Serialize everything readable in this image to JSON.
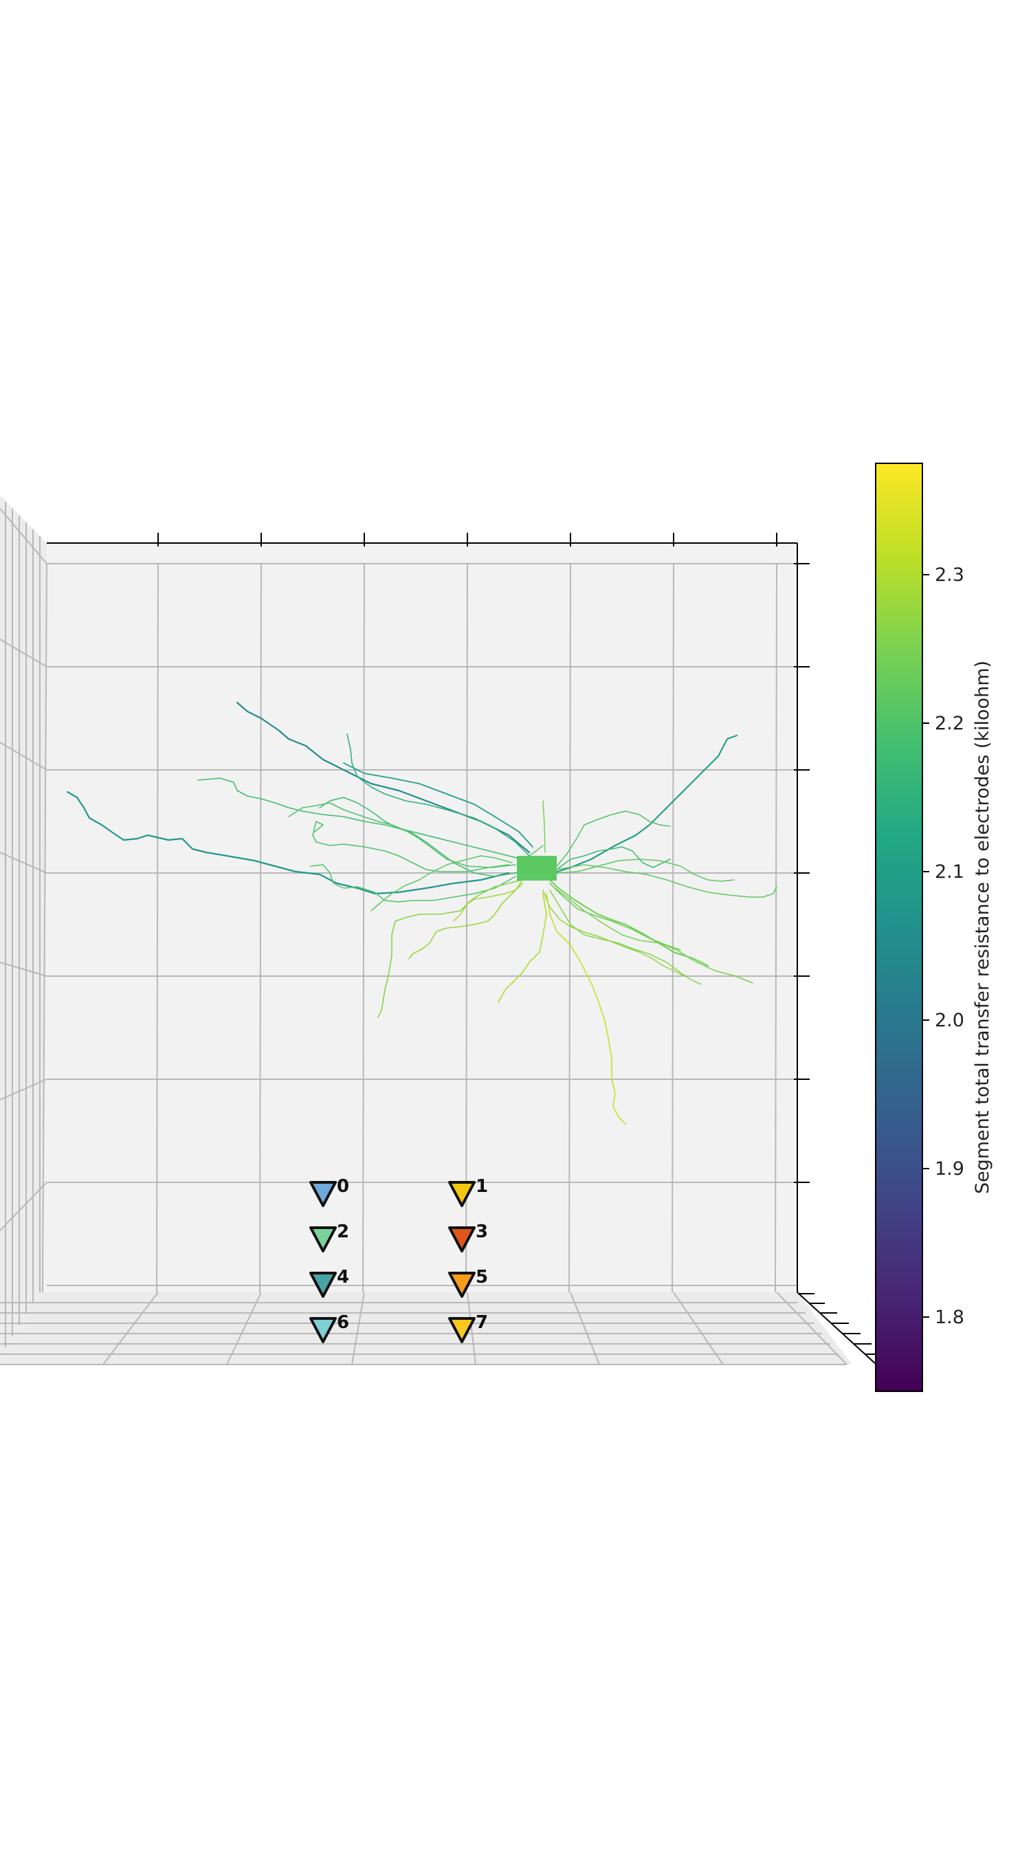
{
  "chart_data": {
    "type": "3d-morphology",
    "colorbar": {
      "label": "Segment total transfer resistance to electrodes (kiloohm)",
      "colormap": "viridis",
      "range": [
        1.75,
        2.375
      ],
      "ticks": [
        "1.8",
        "1.9",
        "2.0",
        "2.1",
        "2.2",
        "2.3"
      ],
      "tick_values": [
        1.8,
        1.9,
        2.0,
        2.1,
        2.2,
        2.3
      ]
    },
    "soma_color": "#5cc862",
    "electrodes": [
      {
        "label": "0",
        "color": "#6fa8dc"
      },
      {
        "label": "1",
        "color": "#f2c80f"
      },
      {
        "label": "2",
        "color": "#7ad39a"
      },
      {
        "label": "3",
        "color": "#e0561b"
      },
      {
        "label": "4",
        "color": "#4aa3a3"
      },
      {
        "label": "5",
        "color": "#f59c1a"
      },
      {
        "label": "6",
        "color": "#7ecfd6"
      },
      {
        "label": "7",
        "color": "#f7c81f"
      }
    ],
    "segments_description_values": [
      2.05,
      2.1,
      2.12,
      2.15,
      2.18,
      2.2,
      2.22,
      2.25,
      2.28,
      2.3,
      2.33
    ],
    "grid": true,
    "axis_tick_labels_visible": false
  }
}
